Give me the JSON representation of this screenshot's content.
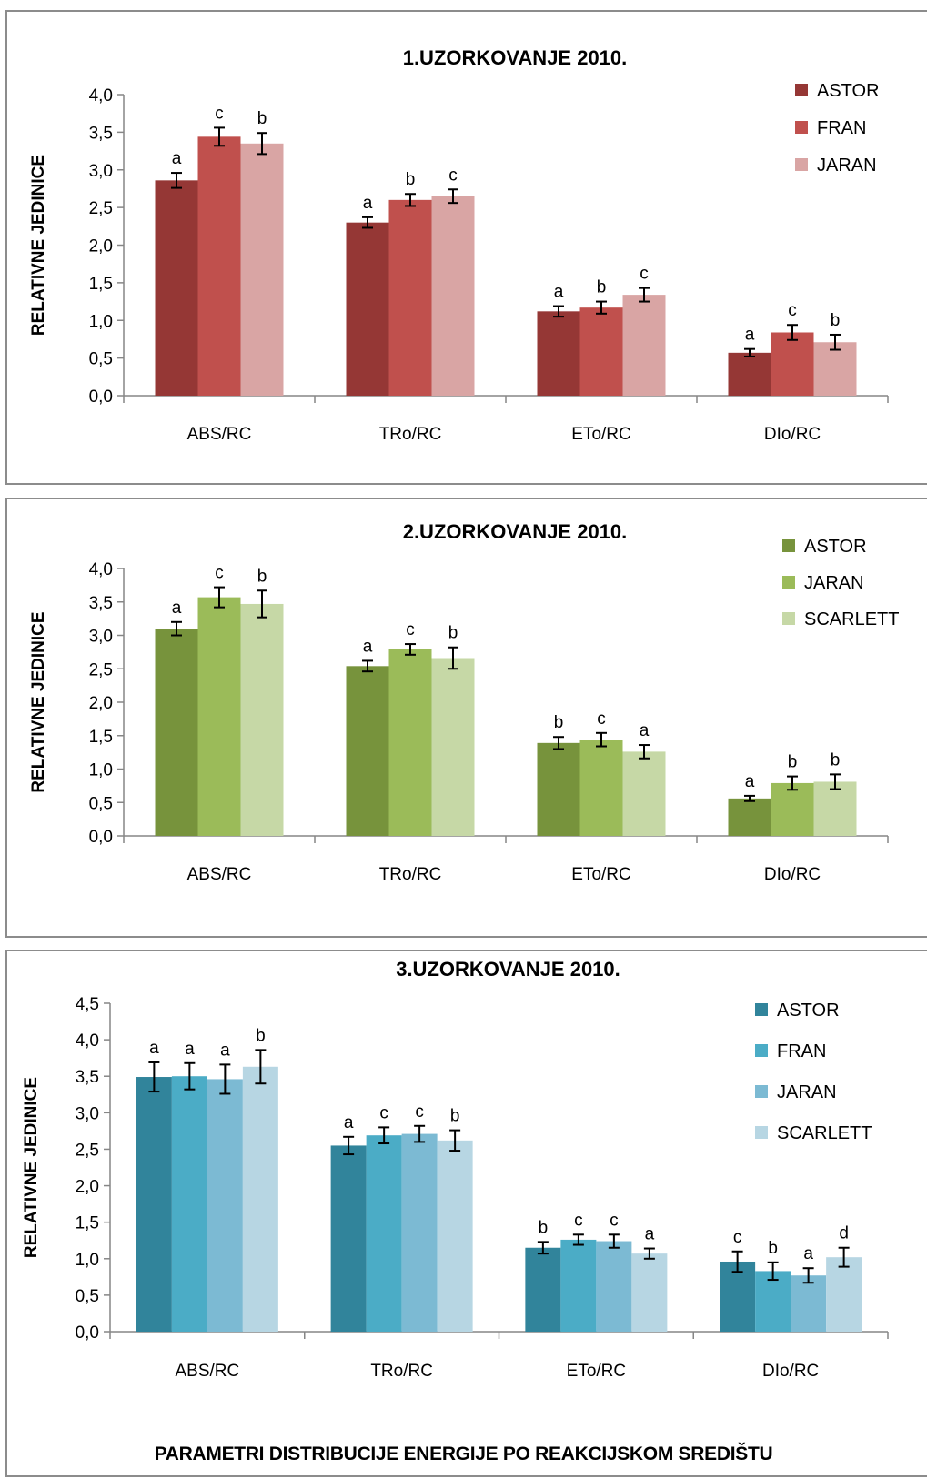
{
  "chart_data": [
    {
      "type": "bar",
      "title": "1.UZORKOVANJE 2010.",
      "ylabel": "RELATIVNE JEDINICE",
      "xlabel": "",
      "ylim": [
        0,
        4.0
      ],
      "ytick_step": 0.5,
      "yticks": [
        "0,0",
        "0,5",
        "1,0",
        "1,5",
        "2,0",
        "2,5",
        "3,0",
        "3,5",
        "4,0"
      ],
      "categories": [
        "ABS/RC",
        "TRo/RC",
        "ETo/RC",
        "DIo/RC"
      ],
      "legend_position": "top-right",
      "series": [
        {
          "name": "ASTOR",
          "color": "#953735",
          "values": [
            2.86,
            2.3,
            1.12,
            0.57
          ],
          "errors": [
            0.1,
            0.07,
            0.07,
            0.05
          ],
          "letters": [
            "a",
            "a",
            "a",
            "a"
          ]
        },
        {
          "name": "FRAN",
          "color": "#c0504d",
          "values": [
            3.44,
            2.6,
            1.17,
            0.84
          ],
          "errors": [
            0.12,
            0.08,
            0.08,
            0.1
          ],
          "letters": [
            "c",
            "b",
            "b",
            "c"
          ]
        },
        {
          "name": "JARAN",
          "color": "#d9a5a4",
          "values": [
            3.35,
            2.65,
            1.34,
            0.71
          ],
          "errors": [
            0.14,
            0.09,
            0.09,
            0.1
          ],
          "letters": [
            "b",
            "c",
            "c",
            "b"
          ]
        }
      ]
    },
    {
      "type": "bar",
      "title": "2.UZORKOVANJE 2010.",
      "ylabel": "RELATIVNE JEDINICE",
      "xlabel": "",
      "ylim": [
        0,
        4.0
      ],
      "ytick_step": 0.5,
      "yticks": [
        "0,0",
        "0,5",
        "1,0",
        "1,5",
        "2,0",
        "2,5",
        "3,0",
        "3,5",
        "4,0"
      ],
      "categories": [
        "ABS/RC",
        "TRo/RC",
        "ETo/RC",
        "DIo/RC"
      ],
      "legend_position": "top-right",
      "series": [
        {
          "name": "ASTOR",
          "color": "#77933c",
          "values": [
            3.1,
            2.54,
            1.39,
            0.56
          ],
          "errors": [
            0.1,
            0.08,
            0.09,
            0.04
          ],
          "letters": [
            "a",
            "a",
            "b",
            "a"
          ]
        },
        {
          "name": "JARAN",
          "color": "#9bbb59",
          "values": [
            3.57,
            2.79,
            1.44,
            0.79
          ],
          "errors": [
            0.15,
            0.08,
            0.1,
            0.1
          ],
          "letters": [
            "c",
            "c",
            "c",
            "b"
          ]
        },
        {
          "name": "SCARLETT",
          "color": "#c6d8a6",
          "values": [
            3.47,
            2.66,
            1.26,
            0.81
          ],
          "errors": [
            0.2,
            0.16,
            0.1,
            0.11
          ],
          "letters": [
            "b",
            "b",
            "a",
            "b"
          ]
        }
      ]
    },
    {
      "type": "bar",
      "title": "3.UZORKOVANJE 2010.",
      "ylabel": "RELATIVNE JEDINICE",
      "xlabel": "PARAMETRI DISTRIBUCIJE ENERGIJE PO REAKCIJSKOM SREDIŠTU",
      "ylim": [
        0,
        4.5
      ],
      "ytick_step": 0.5,
      "yticks": [
        "0,0",
        "0,5",
        "1,0",
        "1,5",
        "2,0",
        "2,5",
        "3,0",
        "3,5",
        "4,0",
        "4,5"
      ],
      "categories": [
        "ABS/RC",
        "TRo/RC",
        "ETo/RC",
        "DIo/RC"
      ],
      "legend_position": "top-right",
      "series": [
        {
          "name": "ASTOR",
          "color": "#31849b",
          "values": [
            3.49,
            2.55,
            1.15,
            0.96
          ],
          "errors": [
            0.2,
            0.12,
            0.08,
            0.14
          ],
          "letters": [
            "a",
            "a",
            "b",
            "c"
          ]
        },
        {
          "name": "FRAN",
          "color": "#4bacc6",
          "values": [
            3.5,
            2.69,
            1.26,
            0.83
          ],
          "errors": [
            0.18,
            0.11,
            0.07,
            0.12
          ],
          "letters": [
            "a",
            "c",
            "c",
            "b"
          ]
        },
        {
          "name": "JARAN",
          "color": "#7cbad3",
          "values": [
            3.46,
            2.71,
            1.24,
            0.77
          ],
          "errors": [
            0.2,
            0.11,
            0.09,
            0.1
          ],
          "letters": [
            "a",
            "c",
            "c",
            "a"
          ]
        },
        {
          "name": "SCARLETT",
          "color": "#b7d6e3",
          "values": [
            3.63,
            2.62,
            1.07,
            1.02
          ],
          "errors": [
            0.23,
            0.14,
            0.07,
            0.13
          ],
          "letters": [
            "b",
            "b",
            "a",
            "d"
          ]
        }
      ]
    }
  ]
}
